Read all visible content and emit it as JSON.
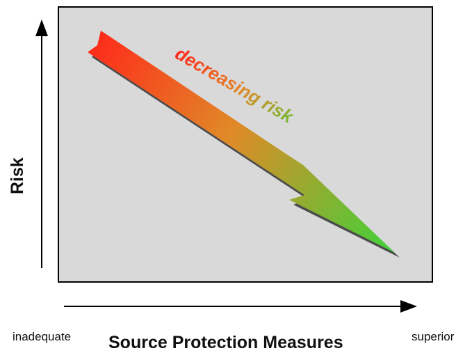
{
  "diagram": {
    "y_axis_label": "Risk",
    "x_axis_label": "Source Protection Measures",
    "x_axis_left_end": "inadequate",
    "x_axis_right_end": "superior",
    "arrow_text": "decreasing risk",
    "colors": {
      "panel_background": "#d9d9d9",
      "arrow_start": "#ff2a1a",
      "arrow_mid": "#e08a28",
      "arrow_end": "#3ed23a",
      "axis": "#000000"
    }
  }
}
